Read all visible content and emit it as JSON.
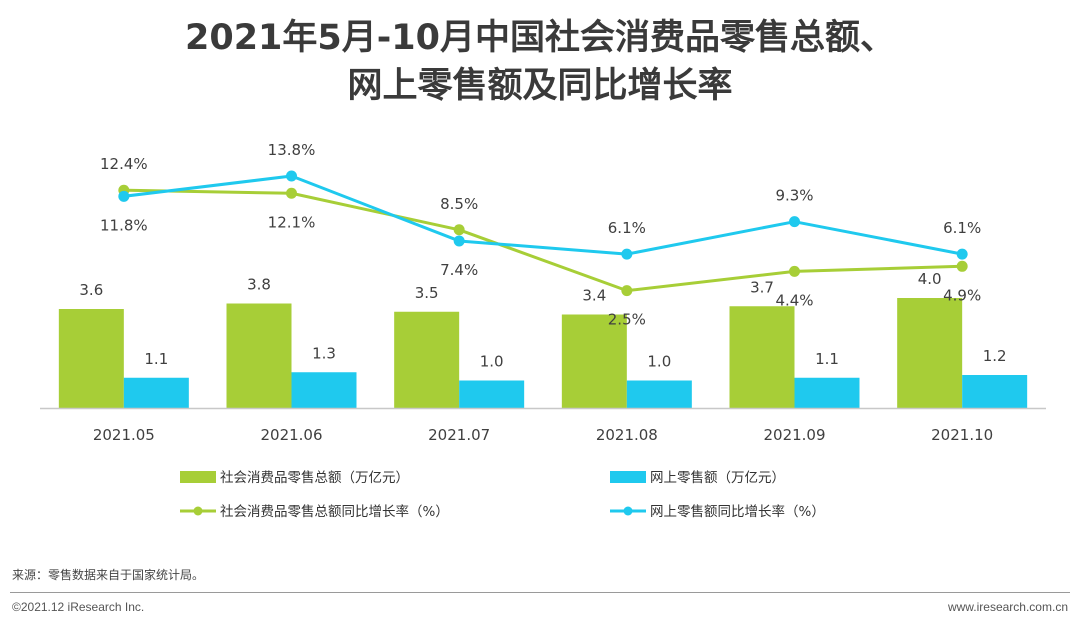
{
  "title_lines": [
    "2021年5月-10月中国社会消费品零售总额、",
    "网上零售额及同比增长率"
  ],
  "colors": {
    "green": "#A7CE37",
    "blue": "#1FC9EE",
    "axis": "#c8c8c8",
    "text": "#404040"
  },
  "chart_data": {
    "type": "bar+line",
    "categories": [
      "2021.05",
      "2021.06",
      "2021.07",
      "2021.08",
      "2021.09",
      "2021.10"
    ],
    "bar_series": [
      {
        "name": "社会消费品零售总额（万亿元）",
        "values": [
          3.6,
          3.8,
          3.5,
          3.4,
          3.7,
          4.0
        ],
        "labels": [
          "3.6",
          "3.8",
          "3.5",
          "3.4",
          "3.7",
          "4.0"
        ]
      },
      {
        "name": "网上零售额（万亿元）",
        "values": [
          1.1,
          1.3,
          1.0,
          1.0,
          1.1,
          1.2
        ],
        "labels": [
          "1.1",
          "1.3",
          "1.0",
          "1.0",
          "1.1",
          "1.2"
        ]
      }
    ],
    "line_series": [
      {
        "name": "社会消费品零售总额同比增长率（%）",
        "values": [
          12.4,
          12.1,
          8.5,
          2.5,
          4.4,
          4.9
        ],
        "labels": [
          "12.4%",
          "12.1%",
          "8.5%",
          "2.5%",
          "4.4%",
          "4.9%"
        ]
      },
      {
        "name": "网上零售额同比增长率（%）",
        "values": [
          11.8,
          13.8,
          7.4,
          6.1,
          9.3,
          6.1
        ],
        "labels": [
          "11.8%",
          "13.8%",
          "7.4%",
          "6.1%",
          "9.3%",
          "6.1%"
        ]
      }
    ],
    "bar_axis": {
      "min": 0,
      "max": 4.0
    },
    "line_axis": {
      "min": 0,
      "max": 14
    },
    "legend_position": "bottom"
  },
  "source": "来源：零售数据来自于国家统计局。",
  "copyright": "©2021.12 iResearch Inc.",
  "website": "www.iresearch.com.cn"
}
